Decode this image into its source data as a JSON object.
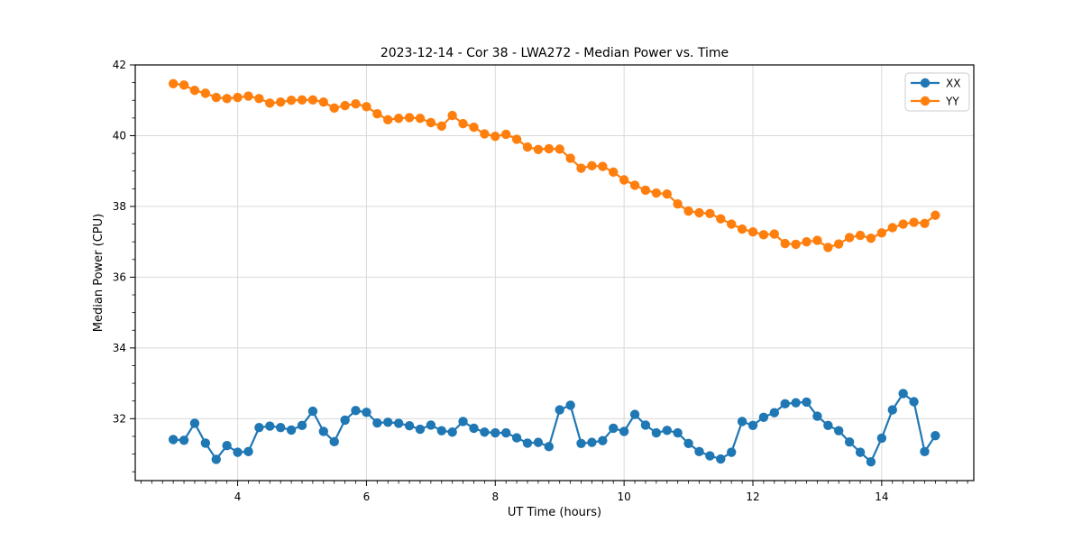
{
  "figure": {
    "background": "#ffffff"
  },
  "chart_data": {
    "type": "line",
    "title": "2023-12-14 - Cor 38 - LWA272 - Median Power vs. Time",
    "xlabel": "UT Time (hours)",
    "ylabel": "Median Power (CPU)",
    "xlim": [
      2.41,
      15.43
    ],
    "ylim": [
      30.25,
      42.0
    ],
    "x_major_ticks": [
      4,
      6,
      8,
      10,
      12,
      14
    ],
    "y_major_ticks": [
      32,
      34,
      36,
      38,
      40,
      42
    ],
    "x_minor_step": 0.166667,
    "y_minor_step": 0.5,
    "grid": true,
    "grid_color": "#d9d9d9",
    "axis_color": "#000000",
    "legend_position": "upper right",
    "legend_entries": [
      "XX",
      "YY"
    ],
    "x": [
      3.0,
      3.167,
      3.333,
      3.5,
      3.667,
      3.833,
      4.0,
      4.167,
      4.333,
      4.5,
      4.667,
      4.833,
      5.0,
      5.167,
      5.333,
      5.5,
      5.667,
      5.833,
      6.0,
      6.167,
      6.333,
      6.5,
      6.667,
      6.833,
      7.0,
      7.167,
      7.333,
      7.5,
      7.667,
      7.833,
      8.0,
      8.167,
      8.333,
      8.5,
      8.667,
      8.833,
      9.0,
      9.167,
      9.333,
      9.5,
      9.667,
      9.833,
      10.0,
      10.167,
      10.333,
      10.5,
      10.667,
      10.833,
      11.0,
      11.167,
      11.333,
      11.5,
      11.667,
      11.833,
      12.0,
      12.167,
      12.333,
      12.5,
      12.667,
      12.833,
      13.0,
      13.167,
      13.333,
      13.5,
      13.667,
      13.833,
      14.0,
      14.167,
      14.333,
      14.5,
      14.667,
      14.833
    ],
    "series": [
      {
        "name": "XX",
        "color": "#1f77b4",
        "values": [
          31.41,
          31.39,
          31.87,
          31.31,
          30.85,
          31.24,
          31.05,
          31.07,
          31.75,
          31.79,
          31.75,
          31.68,
          31.81,
          32.21,
          31.64,
          31.35,
          31.96,
          32.23,
          32.18,
          31.88,
          31.9,
          31.87,
          31.8,
          31.7,
          31.82,
          31.66,
          31.62,
          31.92,
          31.73,
          31.62,
          31.6,
          31.6,
          31.46,
          31.31,
          31.33,
          31.21,
          32.25,
          32.38,
          31.3,
          31.33,
          31.38,
          31.73,
          31.64,
          32.12,
          31.82,
          31.6,
          31.67,
          31.6,
          31.3,
          31.07,
          30.95,
          30.86,
          31.05,
          31.92,
          31.81,
          32.04,
          32.17,
          32.42,
          32.45,
          32.47,
          32.07,
          31.81,
          31.66,
          31.34,
          31.05,
          30.78,
          31.45,
          32.25,
          32.71,
          32.48,
          31.07,
          31.52
        ]
      },
      {
        "name": "YY",
        "color": "#ff7f0e",
        "values": [
          41.47,
          41.43,
          41.28,
          41.2,
          41.08,
          41.05,
          41.08,
          41.12,
          41.05,
          40.92,
          40.95,
          41.0,
          41.01,
          41.01,
          40.95,
          40.78,
          40.85,
          40.9,
          40.82,
          40.62,
          40.45,
          40.49,
          40.51,
          40.49,
          40.37,
          40.27,
          40.57,
          40.34,
          40.24,
          40.05,
          39.98,
          40.04,
          39.9,
          39.68,
          39.61,
          39.63,
          39.62,
          39.36,
          39.08,
          39.15,
          39.13,
          38.97,
          38.75,
          38.6,
          38.46,
          38.38,
          38.35,
          38.07,
          37.87,
          37.82,
          37.8,
          37.65,
          37.5,
          37.36,
          37.28,
          37.2,
          37.22,
          36.95,
          36.93,
          37.0,
          37.04,
          36.84,
          36.94,
          37.12,
          37.18,
          37.1,
          37.25,
          37.4,
          37.5,
          37.55,
          37.52,
          37.75
        ]
      }
    ]
  }
}
